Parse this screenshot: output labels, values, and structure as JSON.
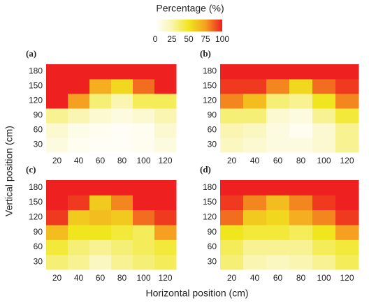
{
  "colorbar": {
    "title": "Percentage (%)",
    "ticks": [
      0,
      25,
      50,
      75,
      100
    ],
    "lim": [
      0,
      100
    ],
    "colors": [
      "#ffffff",
      "#faf5b0",
      "#f0e61e",
      "#f5a020",
      "#ee2020"
    ]
  },
  "xlabel": "Horizontal position (cm)",
  "ylabel": "Vertical position (cm)",
  "chart_data": [
    {
      "type": "heatmap",
      "label": "(a)",
      "x": [
        20,
        40,
        60,
        80,
        100,
        120
      ],
      "y": [
        30,
        60,
        90,
        120,
        150,
        180
      ],
      "values": [
        [
          10,
          5,
          3,
          3,
          5,
          10
        ],
        [
          15,
          8,
          5,
          3,
          5,
          15
        ],
        [
          30,
          25,
          15,
          10,
          15,
          25
        ],
        [
          100,
          75,
          35,
          25,
          40,
          40
        ],
        [
          100,
          100,
          70,
          55,
          85,
          100
        ],
        [
          100,
          100,
          100,
          100,
          100,
          100
        ]
      ]
    },
    {
      "type": "heatmap",
      "label": "(b)",
      "x": [
        20,
        40,
        60,
        80,
        100,
        120
      ],
      "y": [
        30,
        60,
        90,
        120,
        150,
        180
      ],
      "values": [
        [
          20,
          15,
          10,
          10,
          15,
          30
        ],
        [
          25,
          20,
          10,
          5,
          15,
          30
        ],
        [
          35,
          35,
          15,
          10,
          30,
          45
        ],
        [
          80,
          65,
          35,
          30,
          50,
          80
        ],
        [
          95,
          95,
          80,
          55,
          85,
          95
        ],
        [
          100,
          100,
          100,
          100,
          100,
          100
        ]
      ]
    },
    {
      "type": "heatmap",
      "label": "(c)",
      "x": [
        20,
        40,
        60,
        80,
        100,
        120
      ],
      "y": [
        30,
        60,
        90,
        120,
        150,
        180
      ],
      "values": [
        [
          35,
          30,
          20,
          30,
          35,
          40
        ],
        [
          45,
          35,
          30,
          35,
          40,
          45
        ],
        [
          65,
          50,
          50,
          45,
          40,
          75
        ],
        [
          95,
          60,
          65,
          60,
          85,
          95
        ],
        [
          100,
          95,
          60,
          80,
          100,
          100
        ],
        [
          100,
          100,
          100,
          100,
          100,
          100
        ]
      ]
    },
    {
      "type": "heatmap",
      "label": "(d)",
      "x": [
        20,
        40,
        60,
        80,
        100,
        120
      ],
      "y": [
        30,
        60,
        90,
        120,
        150,
        180
      ],
      "values": [
        [
          35,
          25,
          20,
          25,
          30,
          40
        ],
        [
          40,
          30,
          30,
          30,
          40,
          45
        ],
        [
          50,
          45,
          45,
          40,
          50,
          75
        ],
        [
          85,
          60,
          55,
          70,
          80,
          95
        ],
        [
          95,
          80,
          65,
          80,
          95,
          100
        ],
        [
          100,
          100,
          100,
          100,
          100,
          100
        ]
      ]
    }
  ]
}
